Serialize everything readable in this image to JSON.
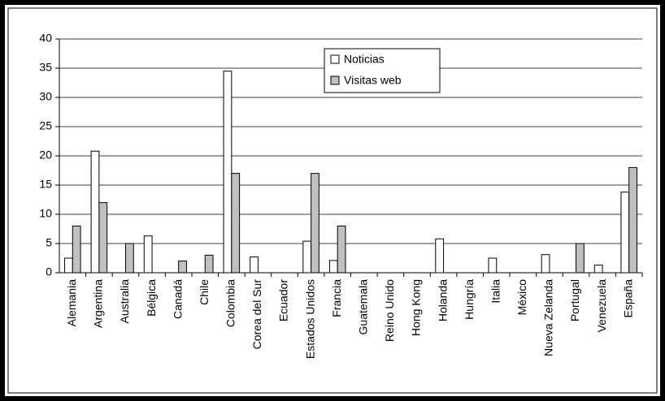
{
  "chart_data": {
    "type": "bar",
    "categories": [
      "Alemania",
      "Argentina",
      "Australia",
      "Bélgica",
      "Canadá",
      "Chile",
      "Colombia",
      "Corea del Sur",
      "Ecuador",
      "Estados Unidos",
      "Francia",
      "Guatemala",
      "Reino Unido",
      "Hong Kong",
      "Holanda",
      "Hungría",
      "Italia",
      "México",
      "Nueva Zelanda",
      "Portugal",
      "Venezuela",
      "España"
    ],
    "series": [
      {
        "name": "Noticias",
        "color": "#ffffff",
        "values": [
          2.5,
          20.8,
          0,
          6.3,
          0,
          0,
          34.5,
          2.7,
          0,
          5.4,
          2.1,
          0,
          0,
          0,
          5.8,
          0,
          2.5,
          0,
          3.1,
          0,
          1.3,
          13.8
        ]
      },
      {
        "name": "Visitas web",
        "color": "#c0c0c0",
        "values": [
          8,
          12,
          5,
          0,
          2,
          3,
          17,
          0,
          0,
          17,
          8,
          0,
          0,
          0,
          0,
          0,
          0,
          0,
          0,
          5,
          0,
          18
        ]
      }
    ],
    "ylim": [
      0,
      40
    ],
    "yticks": [
      0,
      5,
      10,
      15,
      20,
      25,
      30,
      35,
      40
    ],
    "grid": true
  }
}
